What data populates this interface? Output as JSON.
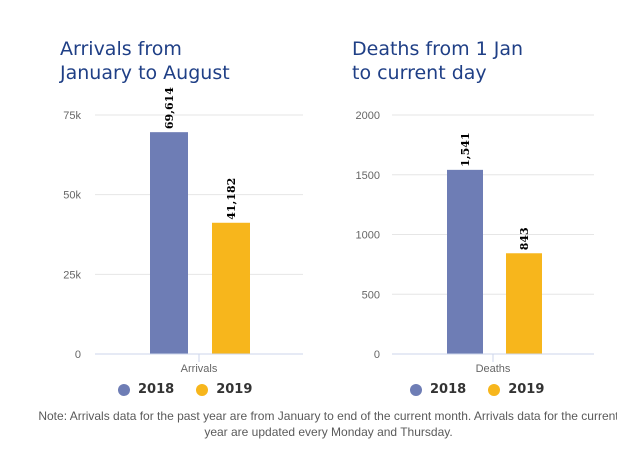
{
  "chart_data": [
    {
      "type": "bar",
      "title": [
        "Arrivals from",
        "January to August"
      ],
      "categories": [
        "Arrivals"
      ],
      "series": [
        {
          "name": "2018",
          "values": [
            69614
          ],
          "label": "69,614"
        },
        {
          "name": "2019",
          "values": [
            41182
          ],
          "label": "41,182"
        }
      ],
      "ylim": [
        0,
        75000
      ],
      "yticks": [
        0,
        25000,
        50000,
        75000
      ],
      "yticklabels": [
        "0",
        "25k",
        "50k",
        "75k"
      ],
      "xlabel": "Arrivals",
      "grid": true,
      "legend": "bottom"
    },
    {
      "type": "bar",
      "title": [
        "Deaths from 1 Jan",
        "to current day"
      ],
      "categories": [
        "Deaths"
      ],
      "series": [
        {
          "name": "2018",
          "values": [
            1541
          ],
          "label": "1,541"
        },
        {
          "name": "2019",
          "values": [
            843
          ],
          "label": "843"
        }
      ],
      "ylim": [
        0,
        2000
      ],
      "yticks": [
        0,
        500,
        1000,
        1500,
        2000
      ],
      "yticklabels": [
        "0",
        "500",
        "1000",
        "1500",
        "2000"
      ],
      "xlabel": "Deaths",
      "grid": true,
      "legend": "bottom"
    }
  ],
  "colors": {
    "2018": "#6e7db5",
    "2019": "#f7b61c"
  },
  "note": "Note: Arrivals data for the past year are from January to end of the current month. Arrivals data for the current year are updated every Monday and Thursday."
}
